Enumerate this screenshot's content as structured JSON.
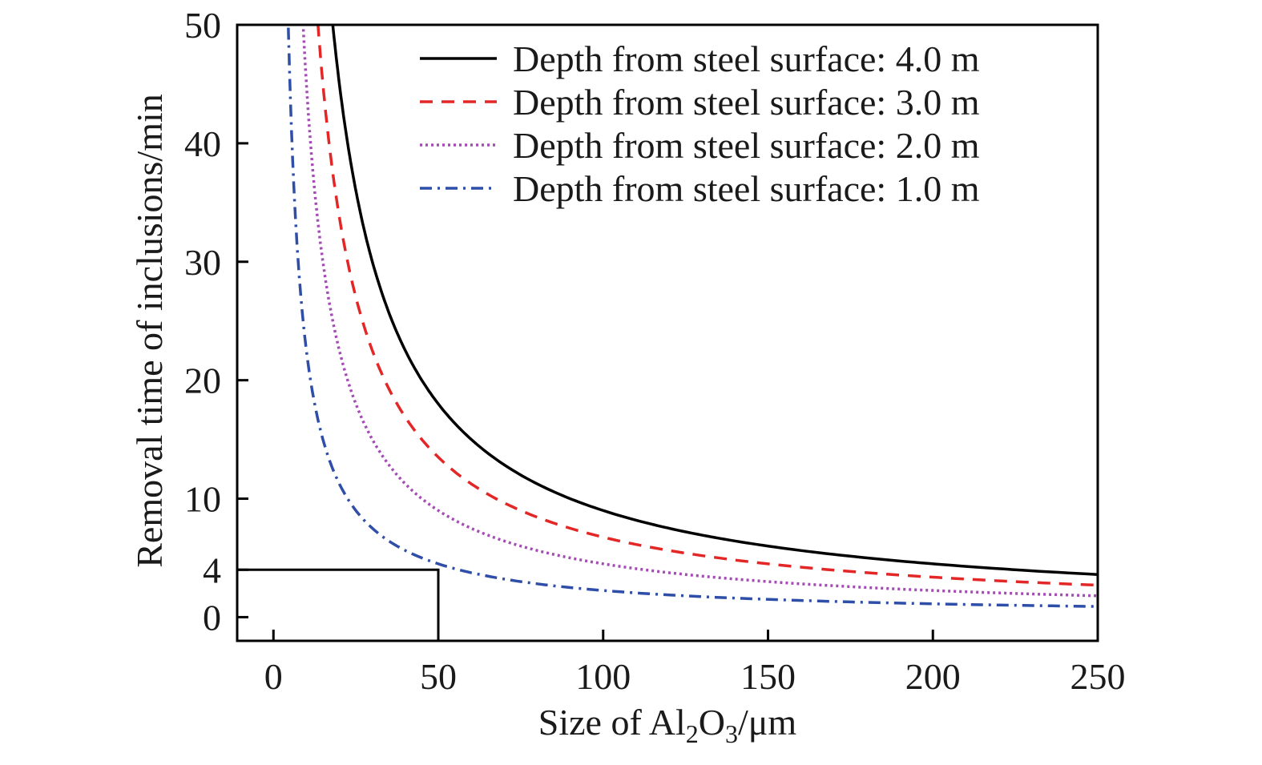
{
  "chart_data": {
    "type": "line",
    "xlabel": {
      "main": "Size of Al",
      "sub1": "2",
      "mid": "O",
      "sub2": "3",
      "unit": "/μm"
    },
    "ylabel": "Removal time of inclusions/min",
    "xlim": [
      -11,
      250
    ],
    "ylim": [
      -2,
      50
    ],
    "xticks": [
      0,
      50,
      100,
      150,
      200,
      250
    ],
    "yticks": [
      0,
      4,
      10,
      20,
      30,
      40,
      50
    ],
    "grid": false,
    "legend_position": "top-right",
    "series": [
      {
        "name": "Depth from steel surface: 4.0 m",
        "color": "#000000",
        "style": "solid",
        "k": 900,
        "x": [
          17.5,
          20,
          25,
          30,
          40,
          50,
          60,
          70,
          80,
          100,
          120,
          150,
          175,
          200,
          225,
          250
        ],
        "y": [
          50,
          44.2,
          33.0,
          26.0,
          18.3,
          14.6,
          12.0,
          10.3,
          9.0,
          7.5,
          6.3,
          5.3,
          4.7,
          4.1,
          3.8,
          3.5
        ]
      },
      {
        "name": "Depth from steel surface: 3.0 m",
        "color": "#e32626",
        "style": "dashed",
        "k": 675,
        "x": [
          13,
          15,
          20,
          25,
          30,
          40,
          50,
          60,
          80,
          100,
          120,
          150,
          175,
          200,
          225,
          250
        ],
        "y": [
          50,
          43.3,
          30.6,
          23.9,
          19.5,
          14.7,
          13.2,
          10.9,
          8.2,
          6.6,
          5.5,
          4.4,
          3.8,
          3.4,
          3.0,
          2.7
        ]
      },
      {
        "name": "Depth from steel surface: 2.0 m",
        "color": "#a54bb5",
        "style": "dotted",
        "k": 450,
        "x": [
          8.5,
          10,
          15,
          20,
          25,
          30,
          40,
          50,
          60,
          80,
          100,
          120,
          150,
          175,
          200,
          225,
          250
        ],
        "y": [
          50,
          43.7,
          29.7,
          22.4,
          18.0,
          15.0,
          11.3,
          9.0,
          7.5,
          5.7,
          4.5,
          3.8,
          3.0,
          2.6,
          2.3,
          2.0,
          1.8
        ]
      },
      {
        "name": "Depth from steel surface: 1.0 m",
        "color": "#2f4ea8",
        "style": "dashdot",
        "k": 225,
        "x": [
          4,
          5,
          7,
          10,
          15,
          20,
          25,
          30,
          40,
          50,
          60,
          80,
          100,
          120,
          150,
          175,
          200,
          225,
          250
        ],
        "y": [
          50,
          44.8,
          32.1,
          22.5,
          15.0,
          11.2,
          9.0,
          7.5,
          5.6,
          4.2,
          3.7,
          2.8,
          2.2,
          1.9,
          1.5,
          1.3,
          1.1,
          1.0,
          0.9
        ]
      }
    ],
    "annotation_lines": [
      {
        "x": [
          -11,
          50,
          50
        ],
        "y": [
          4,
          4,
          -2
        ],
        "color": "#000000"
      }
    ]
  }
}
